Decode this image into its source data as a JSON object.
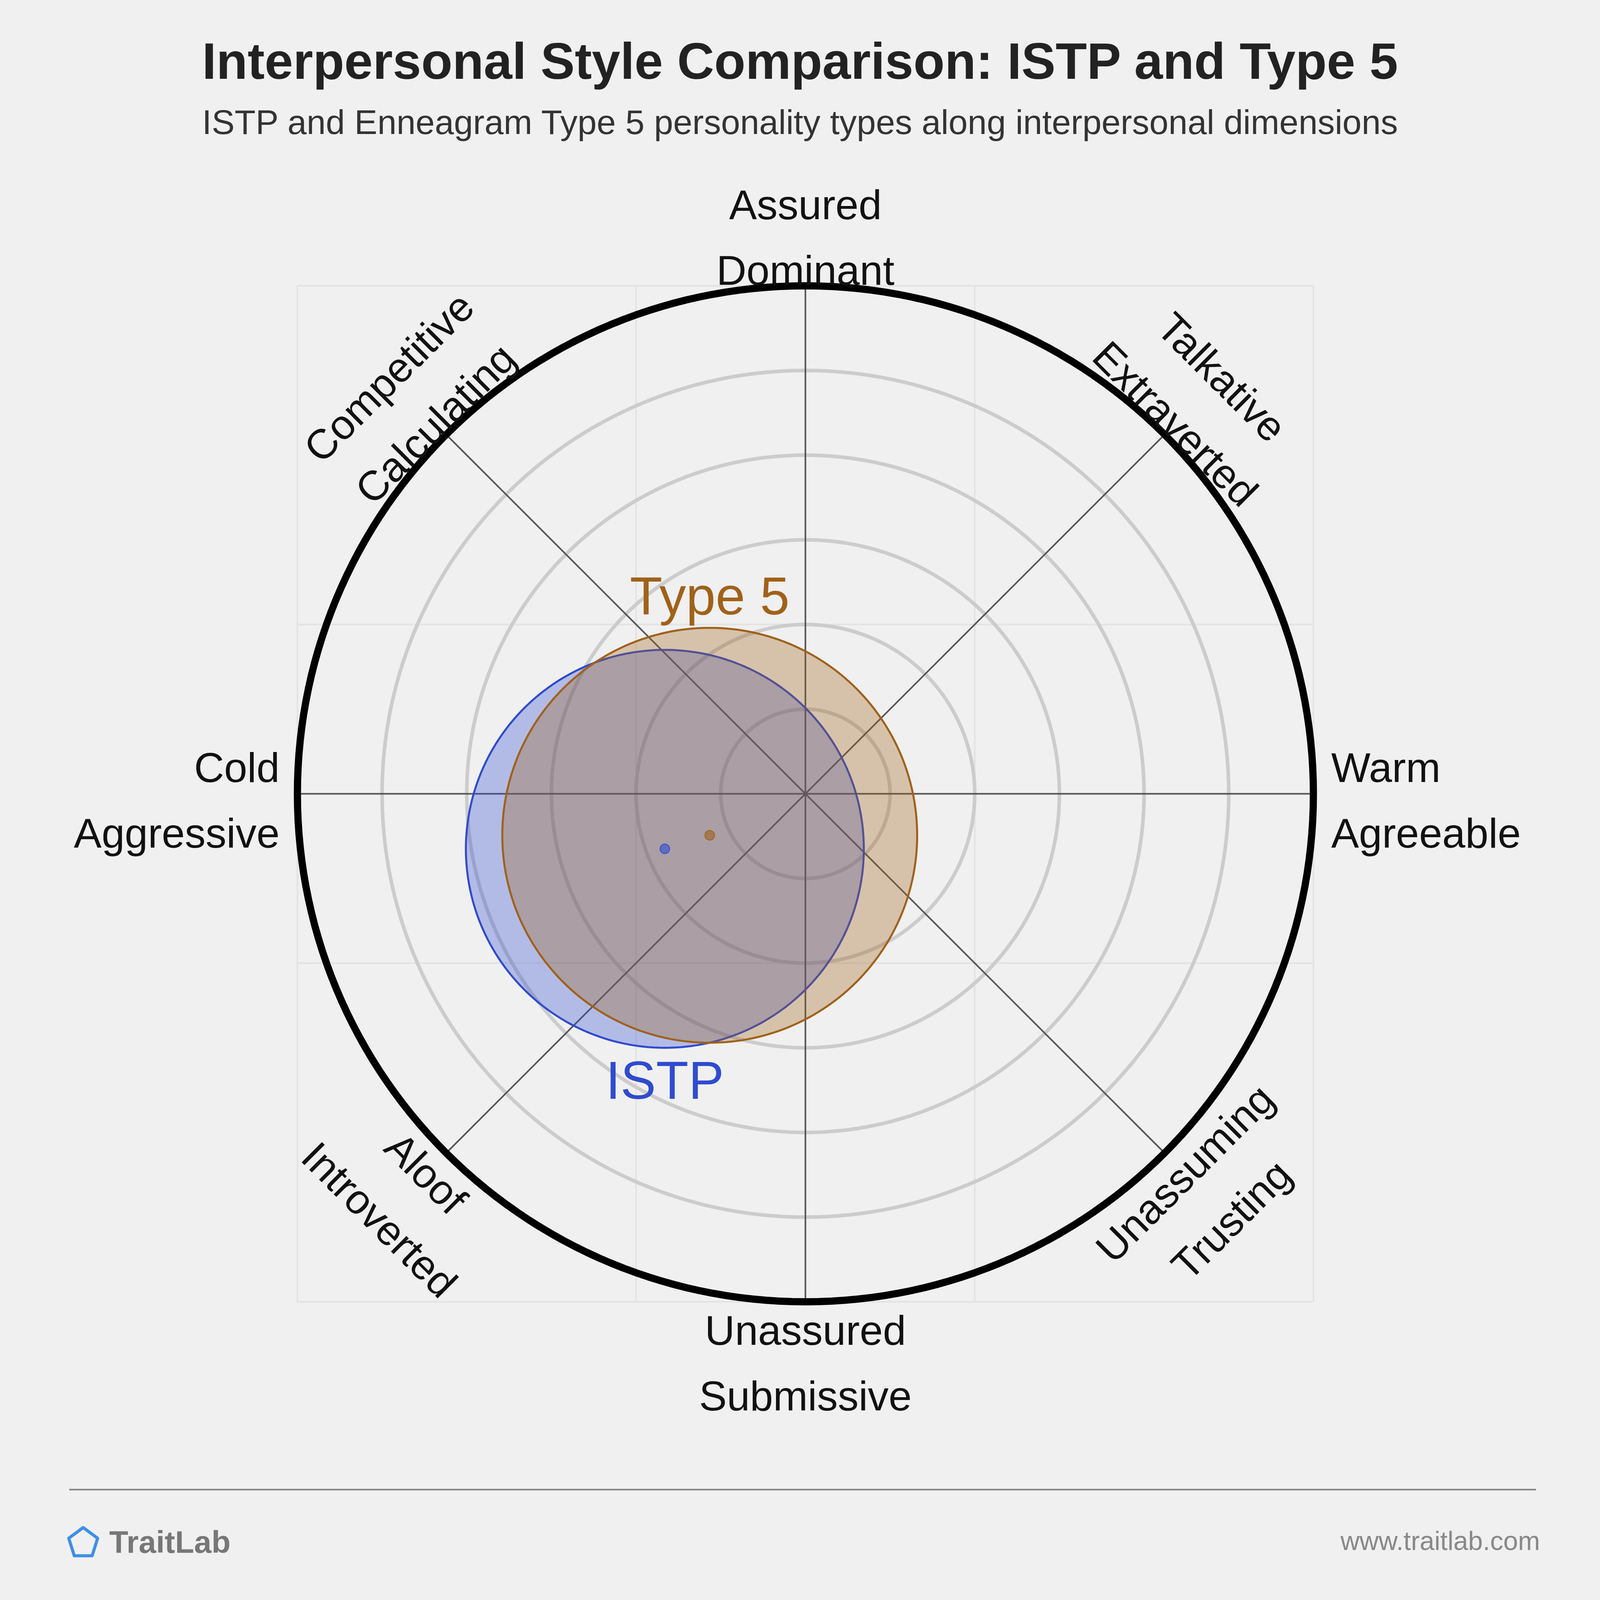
{
  "chart_data": {
    "type": "circumplex",
    "title": "Interpersonal Style Comparison: ISTP and Type 5",
    "subtitle": "ISTP and Enneagram Type 5 personality types along interpersonal dimensions",
    "dimensions": [
      [
        "Assured",
        "Dominant"
      ],
      [
        "Talkative",
        "Extraverted"
      ],
      [
        "Warm",
        "Agreeable"
      ],
      [
        "Unassuming",
        "Trusting"
      ],
      [
        "Unassured",
        "Submissive"
      ],
      [
        "Aloof",
        "Introverted"
      ],
      [
        "Cold",
        "Aggressive"
      ],
      [
        "Competitive",
        "Calculating"
      ]
    ],
    "series": [
      {
        "name": "ISTP",
        "color": "#2f4bd0",
        "x": -1.66,
        "y": -0.65,
        "radius": 2.35
      },
      {
        "name": "Type 5",
        "color": "#a0611a",
        "x": -1.13,
        "y": -0.49,
        "radius": 2.45
      }
    ],
    "xlim": [
      -6,
      6
    ],
    "ylim": [
      -6,
      6
    ],
    "xticks": [
      -6,
      -2,
      2,
      6
    ],
    "yticks": [
      -6,
      -2,
      2,
      6
    ],
    "rticks": [
      1,
      2,
      3,
      4,
      5,
      6
    ],
    "grid": true,
    "tick_labels": false,
    "footer": {
      "brand": "TraitLab",
      "source": "www.traitlab.com"
    }
  }
}
